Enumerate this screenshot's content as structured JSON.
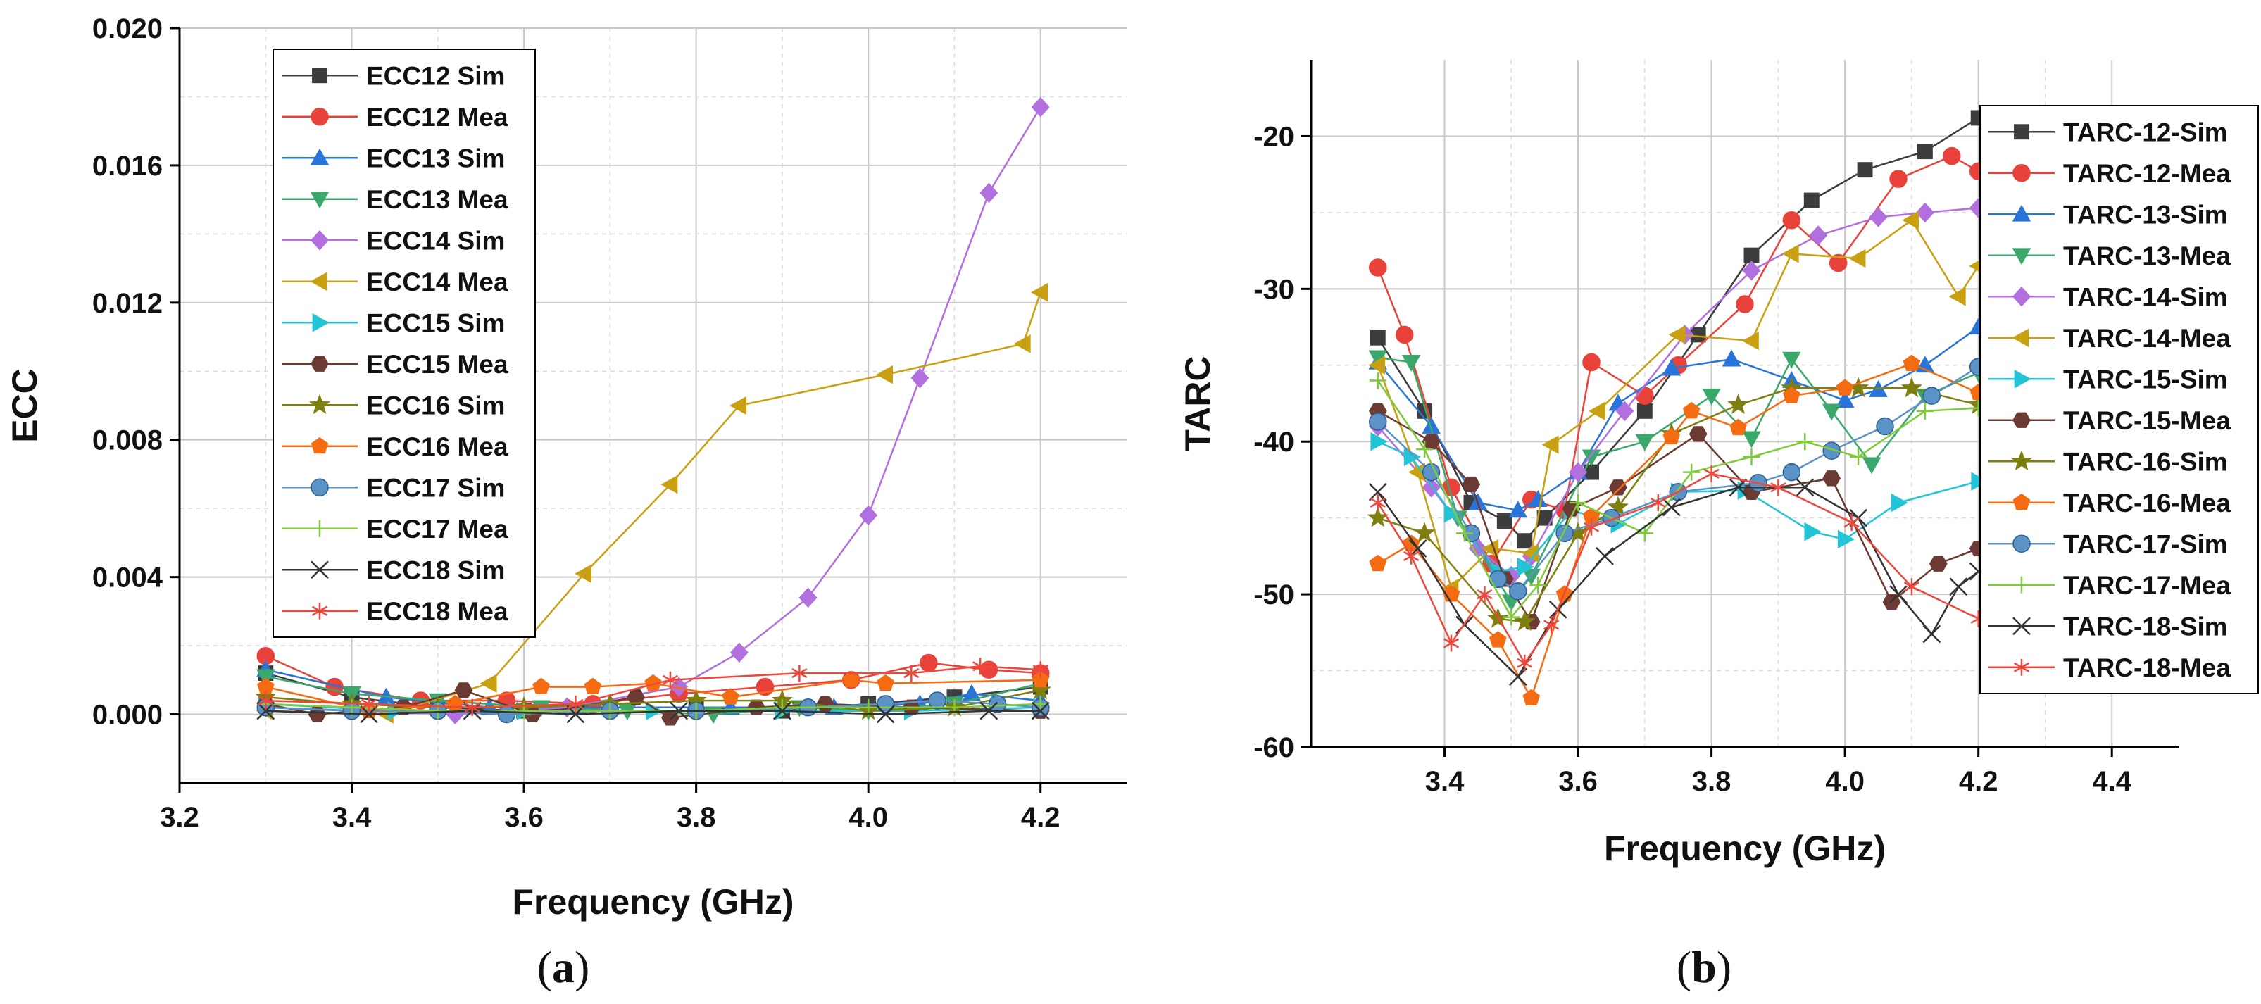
{
  "panels": {
    "a_label": "a",
    "b_label": "b"
  },
  "chart_data": [
    {
      "id": "a",
      "type": "line",
      "title": "",
      "xlabel": "Frequency (GHz)",
      "ylabel": "ECC",
      "xlim": [
        3.2,
        4.3
      ],
      "ylim": [
        -0.002,
        0.02
      ],
      "xticks": [
        "3.2",
        "3.4",
        "3.6",
        "3.8",
        "4.0",
        "4.2"
      ],
      "yticks": [
        "0.000",
        "0.004",
        "0.008",
        "0.012",
        "0.016",
        "0.020"
      ],
      "grid": true,
      "legend_position": "top-left",
      "series": [
        {
          "name": "ECC12 Sim",
          "color": "#3d3d3d",
          "marker": "square",
          "x": [
            3.3,
            3.4,
            3.5,
            3.6,
            3.7,
            3.8,
            3.9,
            4.0,
            4.1,
            4.2
          ],
          "y": [
            0.0012,
            0.0005,
            0.0002,
            0.0001,
            0.0002,
            0.0002,
            0.0001,
            0.0003,
            0.0005,
            0.0008
          ]
        },
        {
          "name": "ECC12 Mea",
          "color": "#e8423a",
          "marker": "circle",
          "x": [
            3.3,
            3.38,
            3.48,
            3.58,
            3.68,
            3.78,
            3.88,
            3.98,
            4.07,
            4.14,
            4.2
          ],
          "y": [
            0.0017,
            0.0008,
            0.0004,
            0.0004,
            0.0003,
            0.0006,
            0.0008,
            0.001,
            0.0015,
            0.0013,
            0.0012
          ]
        },
        {
          "name": "ECC13 Sim",
          "color": "#2874d9",
          "marker": "triangle-up",
          "x": [
            3.3,
            3.44,
            3.56,
            3.7,
            3.84,
            3.96,
            4.06,
            4.12,
            4.2
          ],
          "y": [
            0.0013,
            0.0005,
            0.0002,
            0.0002,
            0.0002,
            0.0002,
            0.0003,
            0.0006,
            0.0004
          ]
        },
        {
          "name": "ECC13 Mea",
          "color": "#3aa86a",
          "marker": "triangle-down",
          "x": [
            3.3,
            3.4,
            3.5,
            3.62,
            3.72,
            3.82,
            3.92,
            4.0,
            4.1,
            4.2
          ],
          "y": [
            0.0011,
            0.0006,
            0.0004,
            0.0002,
            0.0001,
            0.0,
            0.0002,
            0.0001,
            0.0003,
            0.0009
          ]
        },
        {
          "name": "ECC14 Sim",
          "color": "#b26fe0",
          "marker": "diamond",
          "x": [
            3.3,
            3.52,
            3.65,
            3.78,
            3.85,
            3.93,
            4.0,
            4.06,
            4.14,
            4.2
          ],
          "y": [
            0.0002,
            0.0,
            0.0002,
            0.0008,
            0.0018,
            0.0034,
            0.0058,
            0.0098,
            0.0152,
            0.0177
          ]
        },
        {
          "name": "ECC14 Mea",
          "color": "#c9a011",
          "marker": "triangle-left",
          "x": [
            3.3,
            3.44,
            3.56,
            3.67,
            3.77,
            3.85,
            4.02,
            4.18,
            4.2
          ],
          "y": [
            0.0001,
            0.0,
            0.0009,
            0.0041,
            0.0067,
            0.009,
            0.0099,
            0.0108,
            0.0123
          ]
        },
        {
          "name": "ECC15 Sim",
          "color": "#22c4d6",
          "marker": "triangle-right",
          "x": [
            3.3,
            3.45,
            3.6,
            3.75,
            3.9,
            4.05,
            4.2
          ],
          "y": [
            0.0003,
            0.0001,
            0.0001,
            0.0001,
            0.0001,
            0.0001,
            0.0002
          ]
        },
        {
          "name": "ECC15 Mea",
          "color": "#6b3a32",
          "marker": "hexagon",
          "x": [
            3.3,
            3.36,
            3.46,
            3.53,
            3.61,
            3.73,
            3.77,
            3.87,
            3.95,
            4.05,
            4.2
          ],
          "y": [
            0.0003,
            0.0,
            0.0002,
            0.0007,
            0.0,
            0.0005,
            -0.0001,
            0.0002,
            0.0003,
            0.0002,
            0.0001
          ]
        },
        {
          "name": "ECC16 Sim",
          "color": "#7f7f10",
          "marker": "star",
          "x": [
            3.3,
            3.4,
            3.5,
            3.6,
            3.7,
            3.8,
            3.9,
            4.0,
            4.1,
            4.2
          ],
          "y": [
            0.0005,
            0.0003,
            0.0002,
            0.0002,
            0.0003,
            0.0004,
            0.0004,
            0.0001,
            0.0002,
            0.0007
          ]
        },
        {
          "name": "ECC16 Mea",
          "color": "#f56b12",
          "marker": "pentagon",
          "x": [
            3.3,
            3.42,
            3.52,
            3.62,
            3.68,
            3.75,
            3.84,
            3.98,
            4.02,
            4.2
          ],
          "y": [
            0.0008,
            0.0001,
            0.0003,
            0.0008,
            0.0008,
            0.0009,
            0.0005,
            0.001,
            0.0009,
            0.001
          ]
        },
        {
          "name": "ECC17 Sim",
          "color": "#5b93c7",
          "marker": "ball",
          "x": [
            3.3,
            3.4,
            3.5,
            3.58,
            3.7,
            3.8,
            3.93,
            4.02,
            4.08,
            4.15,
            4.2
          ],
          "y": [
            0.0002,
            0.0001,
            0.0001,
            0.0,
            0.0001,
            0.0001,
            0.0002,
            0.0003,
            0.0004,
            0.0003,
            0.0002
          ]
        },
        {
          "name": "ECC17 Mea",
          "color": "#7fcb3c",
          "marker": "plus",
          "x": [
            3.3,
            3.4,
            3.5,
            3.6,
            3.7,
            3.8,
            3.9,
            4.0,
            4.1,
            4.2
          ],
          "y": [
            0.0003,
            0.0002,
            0.0001,
            0.0001,
            0.0001,
            0.0001,
            0.0002,
            0.0002,
            0.0002,
            0.0003
          ]
        },
        {
          "name": "ECC18 Sim",
          "color": "#333333",
          "marker": "x",
          "x": [
            3.3,
            3.42,
            3.54,
            3.66,
            3.78,
            3.9,
            4.02,
            4.14,
            4.2
          ],
          "y": [
            0.0001,
            0.0,
            0.0001,
            0.0,
            0.0001,
            0.0001,
            0.0,
            0.0001,
            0.0001
          ]
        },
        {
          "name": "ECC18 Mea",
          "color": "#f0473c",
          "marker": "asterisk",
          "x": [
            3.3,
            3.42,
            3.54,
            3.66,
            3.77,
            3.92,
            4.05,
            4.13,
            4.2
          ],
          "y": [
            0.0004,
            0.0003,
            0.0002,
            0.0003,
            0.001,
            0.0012,
            0.0012,
            0.0014,
            0.0013
          ]
        }
      ]
    },
    {
      "id": "b",
      "type": "line",
      "title": "",
      "xlabel": "Frequency (GHz)",
      "ylabel": "TARC",
      "xlim": [
        3.2,
        4.5
      ],
      "ylim": [
        -60,
        -15
      ],
      "xticks": [
        "3.4",
        "3.6",
        "3.8",
        "4.0",
        "4.2",
        "4.4"
      ],
      "yticks": [
        "-20",
        "-30",
        "-40",
        "-50",
        "-60"
      ],
      "grid": true,
      "legend_position": "top-right",
      "series": [
        {
          "name": "TARC-12-Sim",
          "color": "#3d3d3d",
          "marker": "square",
          "x": [
            3.3,
            3.37,
            3.44,
            3.49,
            3.52,
            3.55,
            3.62,
            3.7,
            3.78,
            3.86,
            3.95,
            4.03,
            4.12,
            4.2
          ],
          "y": [
            -33.2,
            -38,
            -44,
            -45.2,
            -46.5,
            -45.0,
            -42,
            -38,
            -33,
            -27.8,
            -24.2,
            -22.2,
            -21,
            -18.8
          ]
        },
        {
          "name": "TARC-12-Mea",
          "color": "#e8423a",
          "marker": "circle",
          "x": [
            3.3,
            3.34,
            3.41,
            3.47,
            3.53,
            3.58,
            3.62,
            3.7,
            3.75,
            3.85,
            3.92,
            3.99,
            4.08,
            4.16,
            4.2
          ],
          "y": [
            -28.6,
            -33,
            -43.0,
            -48,
            -43.8,
            -44.5,
            -34.8,
            -37,
            -35.0,
            -31,
            -25.5,
            -28.3,
            -22.8,
            -21.3,
            -22.3
          ]
        },
        {
          "name": "TARC-13-Sim",
          "color": "#2874d9",
          "marker": "triangle-up",
          "x": [
            3.3,
            3.38,
            3.45,
            3.51,
            3.54,
            3.6,
            3.66,
            3.74,
            3.83,
            3.92,
            4.0,
            4.05,
            4.12,
            4.2
          ],
          "y": [
            -34.8,
            -39,
            -44,
            -44.5,
            -43.8,
            -42,
            -37.5,
            -35.2,
            -34.6,
            -36,
            -37.3,
            -36.6,
            -35,
            -32.5
          ]
        },
        {
          "name": "TARC-13-Mea",
          "color": "#3aa86a",
          "marker": "triangle-down",
          "x": [
            3.3,
            3.35,
            3.42,
            3.5,
            3.53,
            3.62,
            3.7,
            3.8,
            3.86,
            3.92,
            3.98,
            4.04,
            4.12,
            4.2
          ],
          "y": [
            -34.5,
            -34.8,
            -45,
            -50.5,
            -48.8,
            -41,
            -40,
            -37,
            -39.8,
            -34.6,
            -38,
            -41.5,
            -37,
            -35.5
          ]
        },
        {
          "name": "TARC-14-Sim",
          "color": "#b26fe0",
          "marker": "diamond",
          "x": [
            3.3,
            3.38,
            3.45,
            3.5,
            3.53,
            3.6,
            3.67,
            3.76,
            3.86,
            3.96,
            4.05,
            4.12,
            4.2
          ],
          "y": [
            -39.0,
            -43,
            -47,
            -48.8,
            -47.5,
            -42,
            -38.0,
            -33,
            -28.8,
            -26.5,
            -25.3,
            -25.0,
            -24.7
          ]
        },
        {
          "name": "TARC-14-Mea",
          "color": "#c9a011",
          "marker": "triangle-left",
          "x": [
            3.3,
            3.36,
            3.41,
            3.47,
            3.53,
            3.56,
            3.63,
            3.75,
            3.86,
            3.92,
            4.02,
            4.1,
            4.17,
            4.2
          ],
          "y": [
            -35.0,
            -42,
            -49.6,
            -47,
            -47.3,
            -40.2,
            -38,
            -33.0,
            -33.4,
            -27.7,
            -28.0,
            -25.5,
            -30.5,
            -28.5
          ]
        },
        {
          "name": "TARC-15-Sim",
          "color": "#22c4d6",
          "marker": "triangle-right",
          "x": [
            3.3,
            3.35,
            3.41,
            3.48,
            3.52,
            3.59,
            3.66,
            3.75,
            3.85,
            3.95,
            4.0,
            4.08,
            4.2
          ],
          "y": [
            -40.0,
            -41,
            -44.7,
            -48.5,
            -48.2,
            -44.5,
            -45.4,
            -43.3,
            -43.2,
            -45.9,
            -46.4,
            -44,
            -42.6
          ]
        },
        {
          "name": "TARC-15-Mea",
          "color": "#6b3a32",
          "marker": "hexagon",
          "x": [
            3.3,
            3.38,
            3.44,
            3.49,
            3.53,
            3.59,
            3.66,
            3.78,
            3.86,
            3.98,
            4.07,
            4.14,
            4.2
          ],
          "y": [
            -38.0,
            -40,
            -42.8,
            -49,
            -51.8,
            -44.4,
            -43,
            -39.5,
            -43.3,
            -42.4,
            -50.5,
            -48,
            -47.0
          ]
        },
        {
          "name": "TARC-16-Sim",
          "color": "#7f7f10",
          "marker": "star",
          "x": [
            3.3,
            3.37,
            3.48,
            3.52,
            3.6,
            3.66,
            3.74,
            3.84,
            3.92,
            4.02,
            4.1,
            4.2
          ],
          "y": [
            -45.0,
            -46,
            -51.6,
            -51.8,
            -46,
            -44.3,
            -39.5,
            -37.6,
            -36.5,
            -36.5,
            -36.5,
            -37.6
          ]
        },
        {
          "name": "TARC-16-Mea",
          "color": "#f56b12",
          "marker": "pentagon",
          "x": [
            3.3,
            3.35,
            3.41,
            3.48,
            3.53,
            3.58,
            3.62,
            3.74,
            3.77,
            3.84,
            3.92,
            4.0,
            4.1,
            4.2
          ],
          "y": [
            -48.0,
            -46.7,
            -50,
            -53,
            -56.8,
            -50,
            -44.9,
            -39.7,
            -38.0,
            -39.1,
            -37,
            -36.5,
            -34.9,
            -36.8
          ]
        },
        {
          "name": "TARC-17-Sim",
          "color": "#5b93c7",
          "marker": "ball",
          "x": [
            3.3,
            3.38,
            3.44,
            3.48,
            3.51,
            3.58,
            3.65,
            3.75,
            3.87,
            3.92,
            3.98,
            4.06,
            4.13,
            4.2
          ],
          "y": [
            -38.7,
            -42,
            -46,
            -49,
            -49.8,
            -46,
            -45.0,
            -43.3,
            -42.7,
            -42.0,
            -40.6,
            -39,
            -37,
            -35.1
          ]
        },
        {
          "name": "TARC-17-Mea",
          "color": "#7fcb3c",
          "marker": "plus",
          "x": [
            3.3,
            3.37,
            3.43,
            3.5,
            3.54,
            3.6,
            3.7,
            3.77,
            3.86,
            3.94,
            4.02,
            4.12,
            4.2
          ],
          "y": [
            -36.0,
            -40.5,
            -46,
            -51.5,
            -49.4,
            -44,
            -46,
            -42.0,
            -41,
            -40,
            -41,
            -38,
            -37.8
          ]
        },
        {
          "name": "TARC-18-Sim",
          "color": "#333333",
          "marker": "x",
          "x": [
            3.3,
            3.36,
            3.43,
            3.51,
            3.57,
            3.64,
            3.74,
            3.84,
            3.94,
            4.02,
            4.08,
            4.13,
            4.17,
            4.2
          ],
          "y": [
            -43.3,
            -47,
            -52,
            -55.4,
            -51,
            -47.5,
            -44.3,
            -43,
            -43,
            -45,
            -50,
            -52.6,
            -49.5,
            -48.5
          ]
        },
        {
          "name": "TARC-18-Mea",
          "color": "#f0473c",
          "marker": "asterisk",
          "x": [
            3.3,
            3.35,
            3.41,
            3.46,
            3.52,
            3.56,
            3.62,
            3.72,
            3.8,
            3.9,
            4.01,
            4.1,
            4.2
          ],
          "y": [
            -44.0,
            -47.5,
            -53.2,
            -50,
            -54.5,
            -52,
            -45.6,
            -44,
            -42.1,
            -43,
            -45.3,
            -49.5,
            -51.6
          ]
        }
      ]
    }
  ]
}
